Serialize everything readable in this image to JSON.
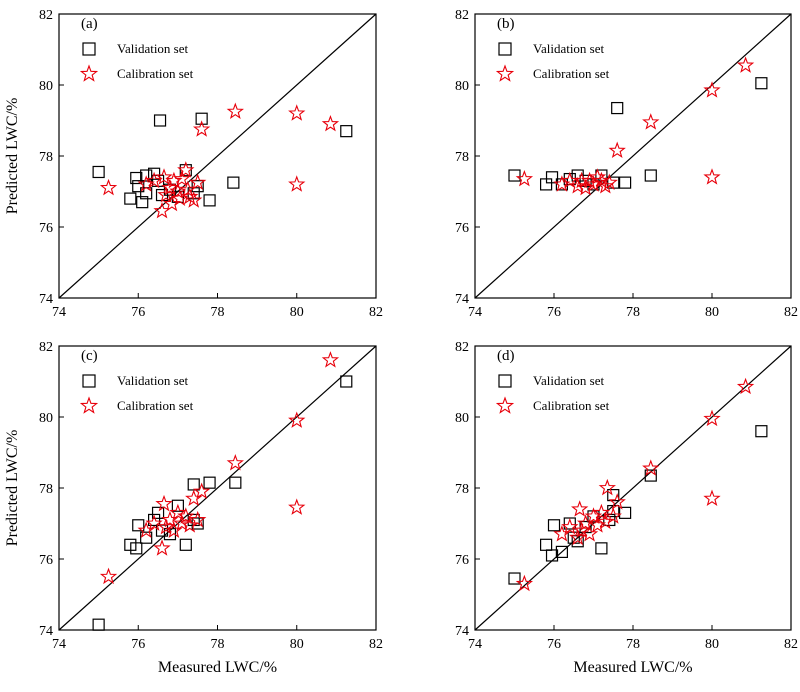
{
  "chart_data": [
    {
      "type": "scatter",
      "panel_label": "(a)",
      "xlabel": "",
      "ylabel": "Predicted LWC/%",
      "xlim": [
        74,
        82
      ],
      "ylim": [
        74,
        82
      ],
      "xticks": [
        "74",
        "76",
        "78",
        "80",
        "82"
      ],
      "yticks": [
        "74",
        "76",
        "78",
        "80",
        "82"
      ],
      "reference_line": "y = x",
      "legend_placement": "top-left",
      "series": [
        {
          "name": "Validation set",
          "marker": "square",
          "color": "#000000",
          "points": [
            [
              75.0,
              77.55
            ],
            [
              75.95,
              77.38
            ],
            [
              76.0,
              77.15
            ],
            [
              76.2,
              77.45
            ],
            [
              75.8,
              76.8
            ],
            [
              76.1,
              76.7
            ],
            [
              76.2,
              76.95
            ],
            [
              76.4,
              77.5
            ],
            [
              76.5,
              77.3
            ],
            [
              76.6,
              76.9
            ],
            [
              76.8,
              77.05
            ],
            [
              77.0,
              76.85
            ],
            [
              77.2,
              77.6
            ],
            [
              77.5,
              77.15
            ],
            [
              77.8,
              76.75
            ],
            [
              77.4,
              76.95
            ],
            [
              78.4,
              77.25
            ],
            [
              76.55,
              79.0
            ],
            [
              77.6,
              79.05
            ],
            [
              81.25,
              78.7
            ]
          ]
        },
        {
          "name": "Calibration set",
          "marker": "star",
          "color": "#e8000b",
          "points": [
            [
              75.25,
              77.1
            ],
            [
              76.2,
              77.2
            ],
            [
              76.4,
              77.3
            ],
            [
              76.6,
              76.45
            ],
            [
              76.65,
              77.4
            ],
            [
              76.7,
              76.9
            ],
            [
              76.8,
              77.1
            ],
            [
              76.85,
              76.65
            ],
            [
              76.9,
              77.3
            ],
            [
              77.0,
              77.0
            ],
            [
              77.05,
              76.8
            ],
            [
              77.1,
              77.35
            ],
            [
              77.2,
              77.6
            ],
            [
              77.25,
              77.05
            ],
            [
              77.3,
              76.85
            ],
            [
              77.4,
              76.75
            ],
            [
              77.5,
              77.25
            ],
            [
              77.6,
              78.75
            ],
            [
              78.45,
              79.25
            ],
            [
              80.0,
              79.2
            ],
            [
              80.0,
              77.2
            ],
            [
              80.85,
              78.9
            ]
          ]
        }
      ]
    },
    {
      "type": "scatter",
      "panel_label": "(b)",
      "xlabel": "",
      "ylabel": "",
      "xlim": [
        74,
        82
      ],
      "ylim": [
        74,
        82
      ],
      "xticks": [
        "74",
        "76",
        "78",
        "80",
        "82"
      ],
      "yticks": [
        "74",
        "76",
        "78",
        "80",
        "82"
      ],
      "reference_line": "y = x",
      "legend_placement": "top-left",
      "series": [
        {
          "name": "Validation set",
          "marker": "square",
          "color": "#000000",
          "points": [
            [
              75.0,
              77.45
            ],
            [
              75.8,
              77.2
            ],
            [
              75.95,
              77.4
            ],
            [
              76.2,
              77.2
            ],
            [
              76.4,
              77.35
            ],
            [
              76.6,
              77.45
            ],
            [
              76.8,
              77.3
            ],
            [
              77.0,
              77.2
            ],
            [
              77.2,
              77.45
            ],
            [
              77.5,
              77.25
            ],
            [
              77.8,
              77.25
            ],
            [
              78.45,
              77.45
            ],
            [
              77.6,
              79.35
            ],
            [
              81.25,
              80.05
            ]
          ]
        },
        {
          "name": "Calibration set",
          "marker": "star",
          "color": "#e8000b",
          "points": [
            [
              75.25,
              77.35
            ],
            [
              76.2,
              77.2
            ],
            [
              76.4,
              77.3
            ],
            [
              76.6,
              77.15
            ],
            [
              76.7,
              77.3
            ],
            [
              76.8,
              77.1
            ],
            [
              76.9,
              77.3
            ],
            [
              77.0,
              77.2
            ],
            [
              77.1,
              77.4
            ],
            [
              77.2,
              77.3
            ],
            [
              77.3,
              77.15
            ],
            [
              77.4,
              77.25
            ],
            [
              77.6,
              78.15
            ],
            [
              78.45,
              78.95
            ],
            [
              80.0,
              79.85
            ],
            [
              80.0,
              77.4
            ],
            [
              80.85,
              80.55
            ]
          ]
        }
      ]
    },
    {
      "type": "scatter",
      "panel_label": "(c)",
      "xlabel": "Measured LWC/%",
      "ylabel": "Predicted LWC/%",
      "xlim": [
        74,
        82
      ],
      "ylim": [
        74,
        82
      ],
      "xticks": [
        "74",
        "76",
        "78",
        "80",
        "82"
      ],
      "yticks": [
        "74",
        "76",
        "78",
        "80",
        "82"
      ],
      "reference_line": "y = x",
      "legend_placement": "top-left",
      "series": [
        {
          "name": "Validation set",
          "marker": "square",
          "color": "#000000",
          "points": [
            [
              75.0,
              74.15
            ],
            [
              75.8,
              76.4
            ],
            [
              75.95,
              76.3
            ],
            [
              76.0,
              76.95
            ],
            [
              76.2,
              76.6
            ],
            [
              76.4,
              77.1
            ],
            [
              76.5,
              77.3
            ],
            [
              76.6,
              76.8
            ],
            [
              76.8,
              76.7
            ],
            [
              77.0,
              77.5
            ],
            [
              77.2,
              76.4
            ],
            [
              77.4,
              77.1
            ],
            [
              77.5,
              77.0
            ],
            [
              77.4,
              78.1
            ],
            [
              77.8,
              78.15
            ],
            [
              78.45,
              78.15
            ],
            [
              81.25,
              81.0
            ]
          ]
        },
        {
          "name": "Calibration set",
          "marker": "star",
          "color": "#e8000b",
          "points": [
            [
              75.25,
              75.5
            ],
            [
              76.2,
              76.8
            ],
            [
              76.4,
              77.0
            ],
            [
              76.6,
              76.3
            ],
            [
              76.65,
              77.55
            ],
            [
              76.7,
              76.9
            ],
            [
              76.8,
              77.1
            ],
            [
              76.9,
              76.8
            ],
            [
              77.0,
              77.3
            ],
            [
              77.1,
              77.0
            ],
            [
              77.2,
              77.2
            ],
            [
              77.3,
              76.95
            ],
            [
              77.4,
              77.7
            ],
            [
              77.5,
              77.1
            ],
            [
              77.6,
              77.9
            ],
            [
              78.45,
              78.7
            ],
            [
              80.0,
              79.9
            ],
            [
              80.0,
              77.45
            ],
            [
              80.85,
              81.6
            ]
          ]
        }
      ]
    },
    {
      "type": "scatter",
      "panel_label": "(d)",
      "xlabel": "Measured LWC/%",
      "ylabel": "",
      "xlim": [
        74,
        82
      ],
      "ylim": [
        74,
        82
      ],
      "xticks": [
        "74",
        "76",
        "78",
        "80",
        "82"
      ],
      "yticks": [
        "74",
        "76",
        "78",
        "80",
        "82"
      ],
      "reference_line": "y = x",
      "legend_placement": "top-left",
      "series": [
        {
          "name": "Validation set",
          "marker": "square",
          "color": "#000000",
          "points": [
            [
              75.0,
              75.45
            ],
            [
              75.8,
              76.4
            ],
            [
              75.95,
              76.1
            ],
            [
              76.0,
              76.95
            ],
            [
              76.2,
              76.2
            ],
            [
              76.4,
              77.0
            ],
            [
              76.5,
              76.6
            ],
            [
              76.6,
              76.5
            ],
            [
              76.8,
              76.9
            ],
            [
              77.0,
              77.2
            ],
            [
              77.2,
              76.3
            ],
            [
              77.4,
              77.1
            ],
            [
              77.5,
              77.35
            ],
            [
              77.5,
              77.8
            ],
            [
              77.8,
              77.3
            ],
            [
              78.45,
              78.35
            ],
            [
              81.25,
              79.6
            ]
          ]
        },
        {
          "name": "Calibration set",
          "marker": "star",
          "color": "#e8000b",
          "points": [
            [
              75.25,
              75.3
            ],
            [
              76.2,
              76.7
            ],
            [
              76.4,
              76.9
            ],
            [
              76.6,
              76.6
            ],
            [
              76.65,
              77.4
            ],
            [
              76.7,
              76.8
            ],
            [
              76.8,
              77.0
            ],
            [
              76.9,
              76.7
            ],
            [
              77.0,
              77.2
            ],
            [
              77.1,
              76.95
            ],
            [
              77.2,
              77.3
            ],
            [
              77.3,
              77.05
            ],
            [
              77.35,
              78.0
            ],
            [
              77.5,
              77.2
            ],
            [
              77.6,
              77.6
            ],
            [
              78.45,
              78.55
            ],
            [
              80.0,
              79.95
            ],
            [
              80.0,
              77.7
            ],
            [
              80.85,
              80.85
            ]
          ]
        }
      ]
    }
  ]
}
